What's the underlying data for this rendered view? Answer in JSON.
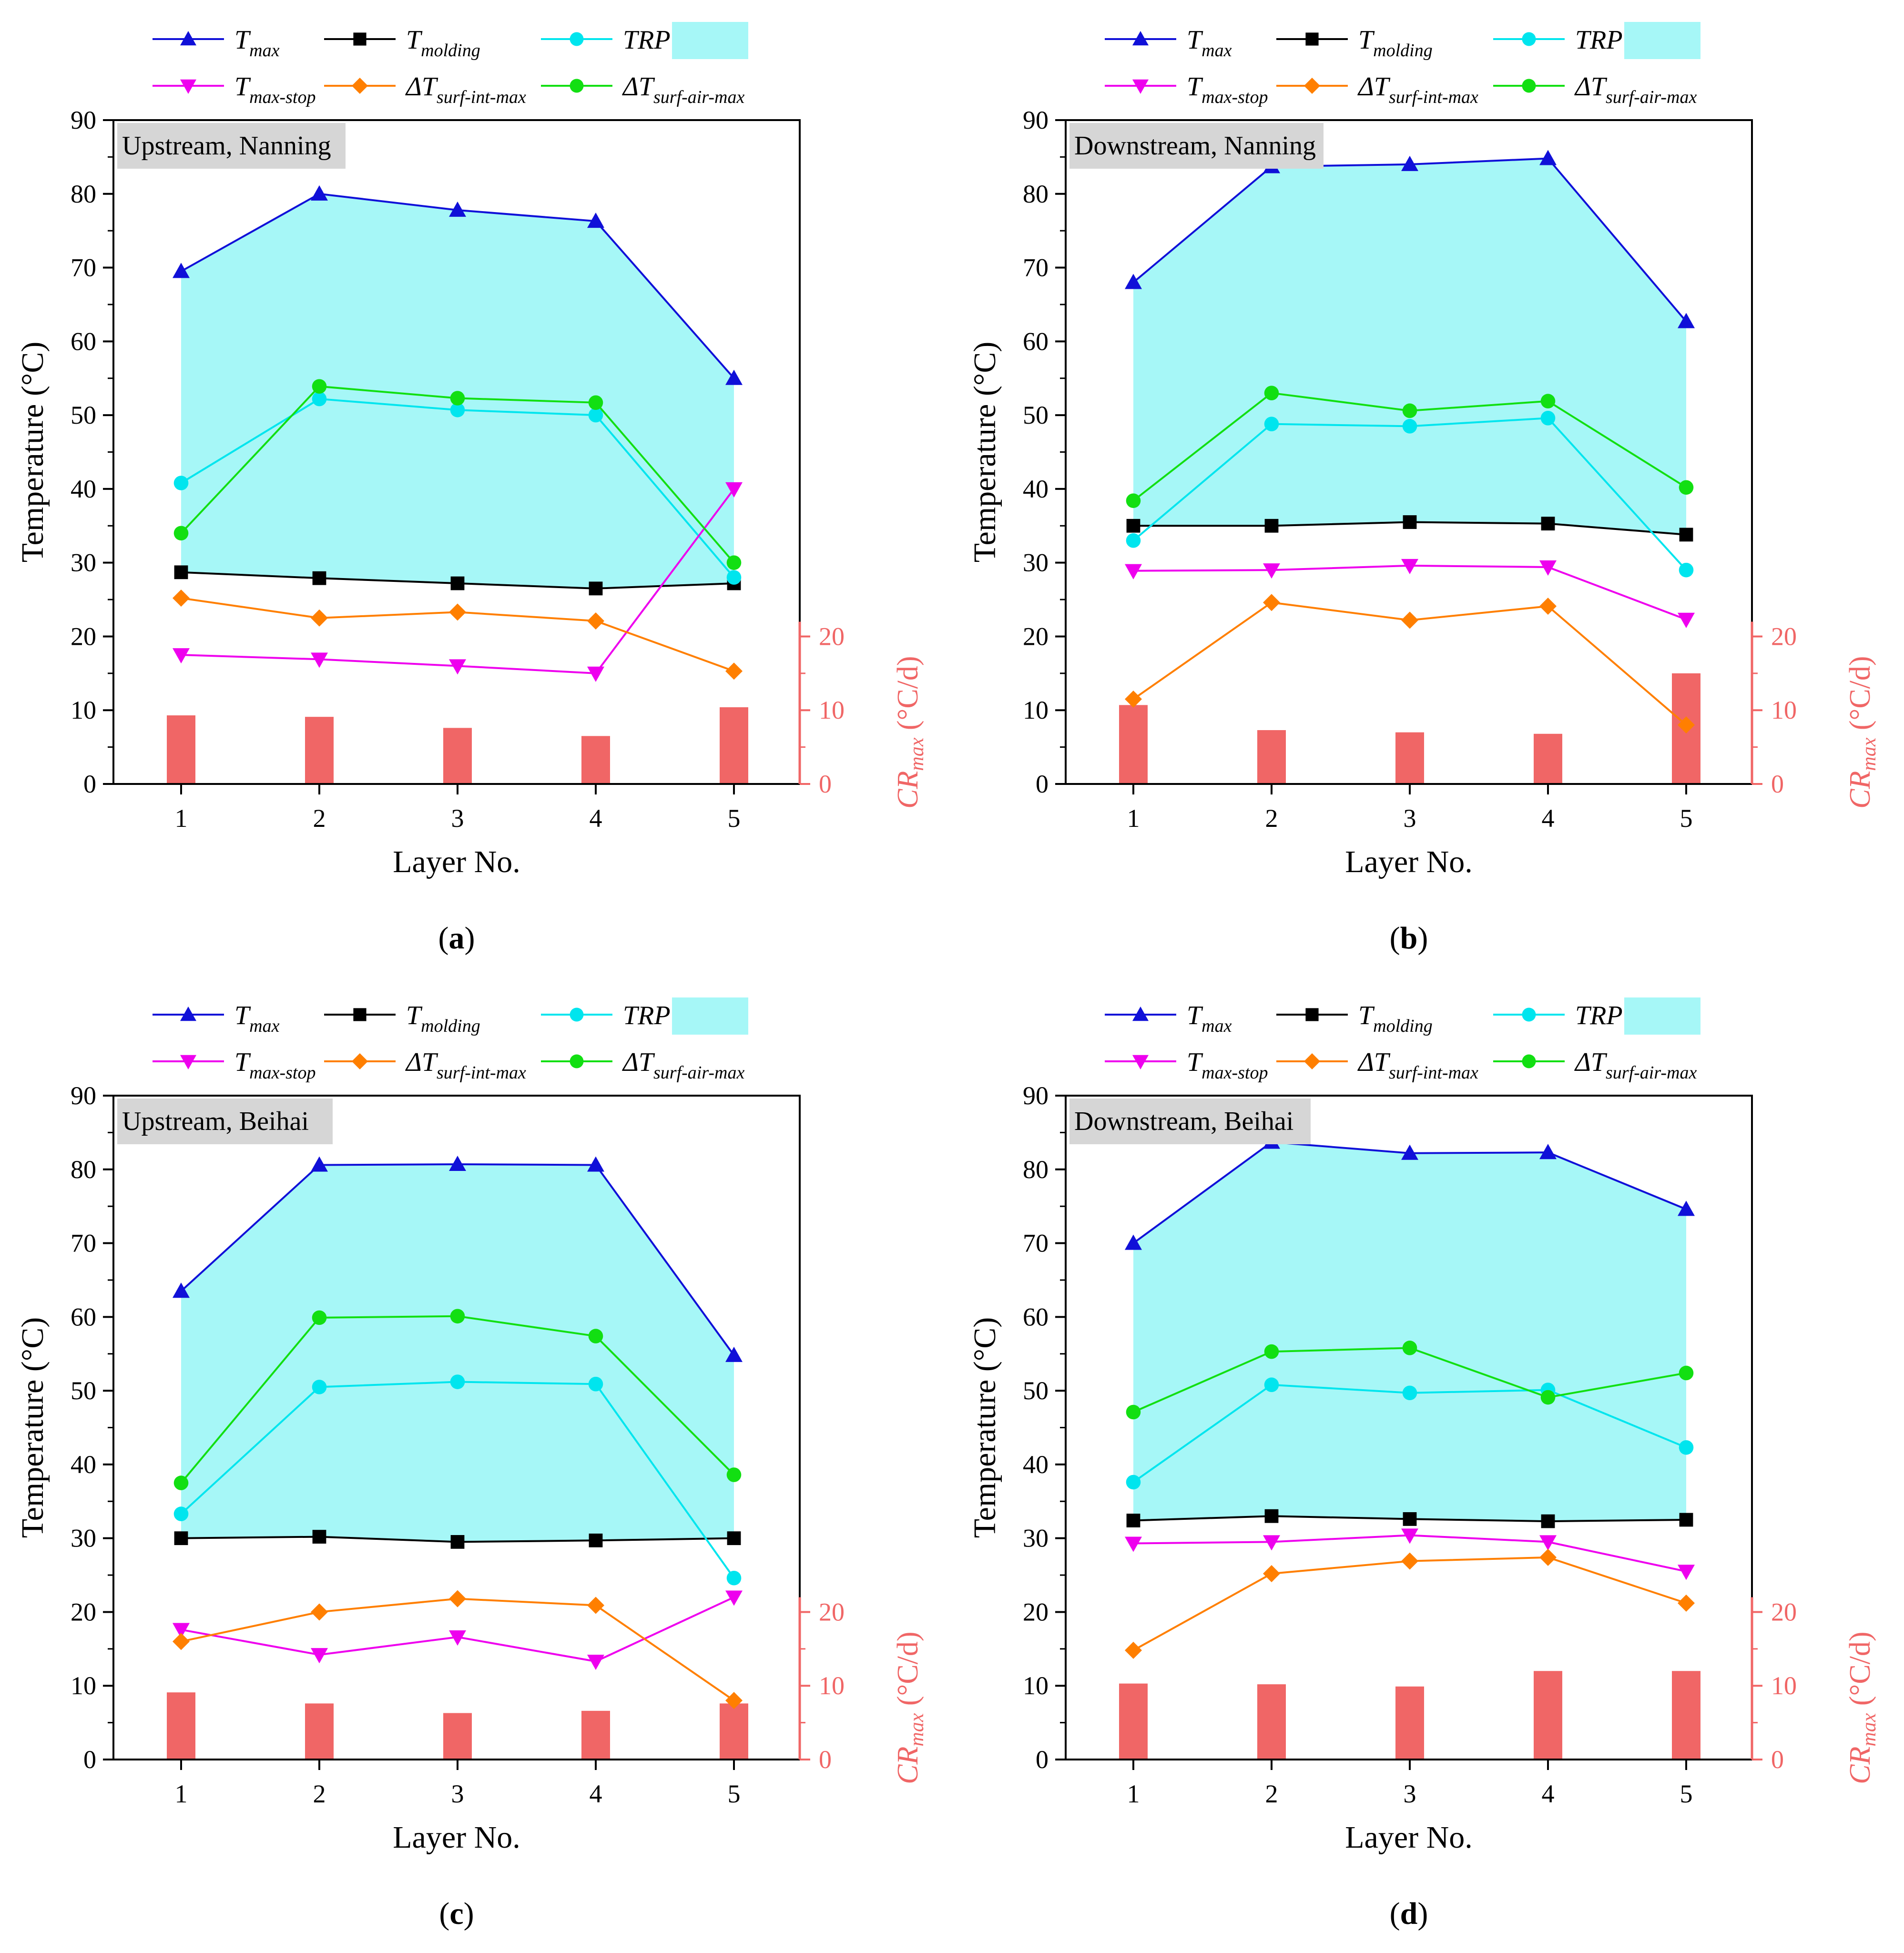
{
  "legend": {
    "tmax": {
      "main": "T",
      "sub": "max"
    },
    "tmolding": {
      "main": "T",
      "sub": "molding"
    },
    "trp": {
      "main": "TRP",
      "sub": ""
    },
    "tmaxstop": {
      "main": "T",
      "sub": "max-stop"
    },
    "dtsurfint": {
      "main": "ΔT",
      "sub": "surf-int-max"
    },
    "dtsurfair": {
      "main": "ΔT",
      "sub": "surf-air-max"
    }
  },
  "colors": {
    "tmax": "#1010d8",
    "tmolding": "#000000",
    "trp": "#00e5ee",
    "fill": "#a6f7f7",
    "tmaxstop": "#ee00ee",
    "dtsurfint": "#ff7f00",
    "dtsurfair": "#12df12",
    "bar": "#f06666",
    "label_box": "#d6d6d6"
  },
  "axes": {
    "ylabel": "Temperature (°C)",
    "xlabel": "Layer No.",
    "y2label_main": "CR",
    "y2label_sub": "max",
    "y2label_unit": " (°C/d)",
    "ylim": [
      0,
      90
    ],
    "yticks": [
      "0",
      "10",
      "20",
      "30",
      "40",
      "50",
      "60",
      "70",
      "80",
      "90"
    ],
    "y2ticks": [
      "0",
      "10",
      "20"
    ],
    "xticks": [
      "1",
      "2",
      "3",
      "4",
      "5"
    ]
  },
  "chart_data": [
    {
      "type": "line",
      "panel": "(a)",
      "title": "Upstream, Nanning",
      "categories": [
        1,
        2,
        3,
        4,
        5
      ],
      "series": [
        {
          "name": "Tmax",
          "values": [
            69.5,
            80.0,
            77.8,
            76.3,
            55.0
          ]
        },
        {
          "name": "Tmolding",
          "values": [
            28.7,
            27.9,
            27.2,
            26.5,
            27.2
          ]
        },
        {
          "name": "TRP",
          "values": [
            40.8,
            52.2,
            50.7,
            50.0,
            28.0
          ]
        },
        {
          "name": "Tmax-stop",
          "values": [
            17.5,
            16.9,
            16.0,
            15.0,
            40.0
          ]
        },
        {
          "name": "ΔTsurf-int-max",
          "values": [
            25.2,
            22.5,
            23.3,
            22.1,
            15.3
          ]
        },
        {
          "name": "ΔTsurf-air-max",
          "values": [
            34.0,
            53.9,
            52.3,
            51.7,
            30.0
          ]
        },
        {
          "name": "CRmax",
          "axis": "right",
          "values": [
            9.3,
            9.1,
            7.6,
            6.5,
            10.4
          ]
        }
      ]
    },
    {
      "type": "line",
      "panel": "(b)",
      "title": "Downstream, Nanning",
      "categories": [
        1,
        2,
        3,
        4,
        5
      ],
      "series": [
        {
          "name": "Tmax",
          "values": [
            68.0,
            83.7,
            84.0,
            84.8,
            62.7
          ]
        },
        {
          "name": "Tmolding",
          "values": [
            35.0,
            35.0,
            35.5,
            35.3,
            33.8
          ]
        },
        {
          "name": "TRP",
          "values": [
            33.0,
            48.8,
            48.5,
            49.6,
            29.0
          ]
        },
        {
          "name": "Tmax-stop",
          "values": [
            28.9,
            29.0,
            29.6,
            29.4,
            22.3
          ]
        },
        {
          "name": "ΔTsurf-int-max",
          "values": [
            11.5,
            24.6,
            22.2,
            24.1,
            8.0
          ]
        },
        {
          "name": "ΔTsurf-air-max",
          "values": [
            38.4,
            53.0,
            50.6,
            51.9,
            40.2
          ]
        },
        {
          "name": "CRmax",
          "axis": "right",
          "values": [
            10.7,
            7.3,
            7.0,
            6.8,
            15.0
          ]
        }
      ]
    },
    {
      "type": "line",
      "panel": "(c)",
      "title": "Upstream, Beihai",
      "categories": [
        1,
        2,
        3,
        4,
        5
      ],
      "series": [
        {
          "name": "Tmax",
          "values": [
            63.5,
            80.6,
            80.7,
            80.6,
            54.8
          ]
        },
        {
          "name": "Tmolding",
          "values": [
            30.0,
            30.2,
            29.5,
            29.7,
            30.0
          ]
        },
        {
          "name": "TRP",
          "values": [
            33.3,
            50.5,
            51.2,
            50.9,
            24.6
          ]
        },
        {
          "name": "Tmax-stop",
          "values": [
            17.6,
            14.2,
            16.6,
            13.3,
            22.0
          ]
        },
        {
          "name": "ΔTsurf-int-max",
          "values": [
            16.0,
            20.0,
            21.8,
            20.9,
            8.0
          ]
        },
        {
          "name": "ΔTsurf-air-max",
          "values": [
            37.5,
            59.9,
            60.1,
            57.4,
            38.6
          ]
        },
        {
          "name": "CRmax",
          "axis": "right",
          "values": [
            9.1,
            7.6,
            6.3,
            6.6,
            7.6
          ]
        }
      ]
    },
    {
      "type": "line",
      "panel": "(d)",
      "title": "Downstream, Beihai",
      "categories": [
        1,
        2,
        3,
        4,
        5
      ],
      "series": [
        {
          "name": "Tmax",
          "values": [
            70.0,
            83.7,
            82.2,
            82.3,
            74.6
          ]
        },
        {
          "name": "Tmolding",
          "values": [
            32.4,
            33.0,
            32.6,
            32.3,
            32.5
          ]
        },
        {
          "name": "TRP",
          "values": [
            37.6,
            50.8,
            49.7,
            50.1,
            42.3
          ]
        },
        {
          "name": "Tmax-stop",
          "values": [
            29.3,
            29.5,
            30.4,
            29.5,
            25.5
          ]
        },
        {
          "name": "ΔTsurf-int-max",
          "values": [
            14.8,
            25.2,
            26.9,
            27.4,
            21.2
          ]
        },
        {
          "name": "ΔTsurf-air-max",
          "values": [
            47.1,
            55.3,
            55.8,
            49.1,
            52.4
          ]
        },
        {
          "name": "CRmax",
          "axis": "right",
          "values": [
            10.3,
            10.2,
            9.9,
            12.0,
            12.0
          ]
        }
      ]
    }
  ]
}
